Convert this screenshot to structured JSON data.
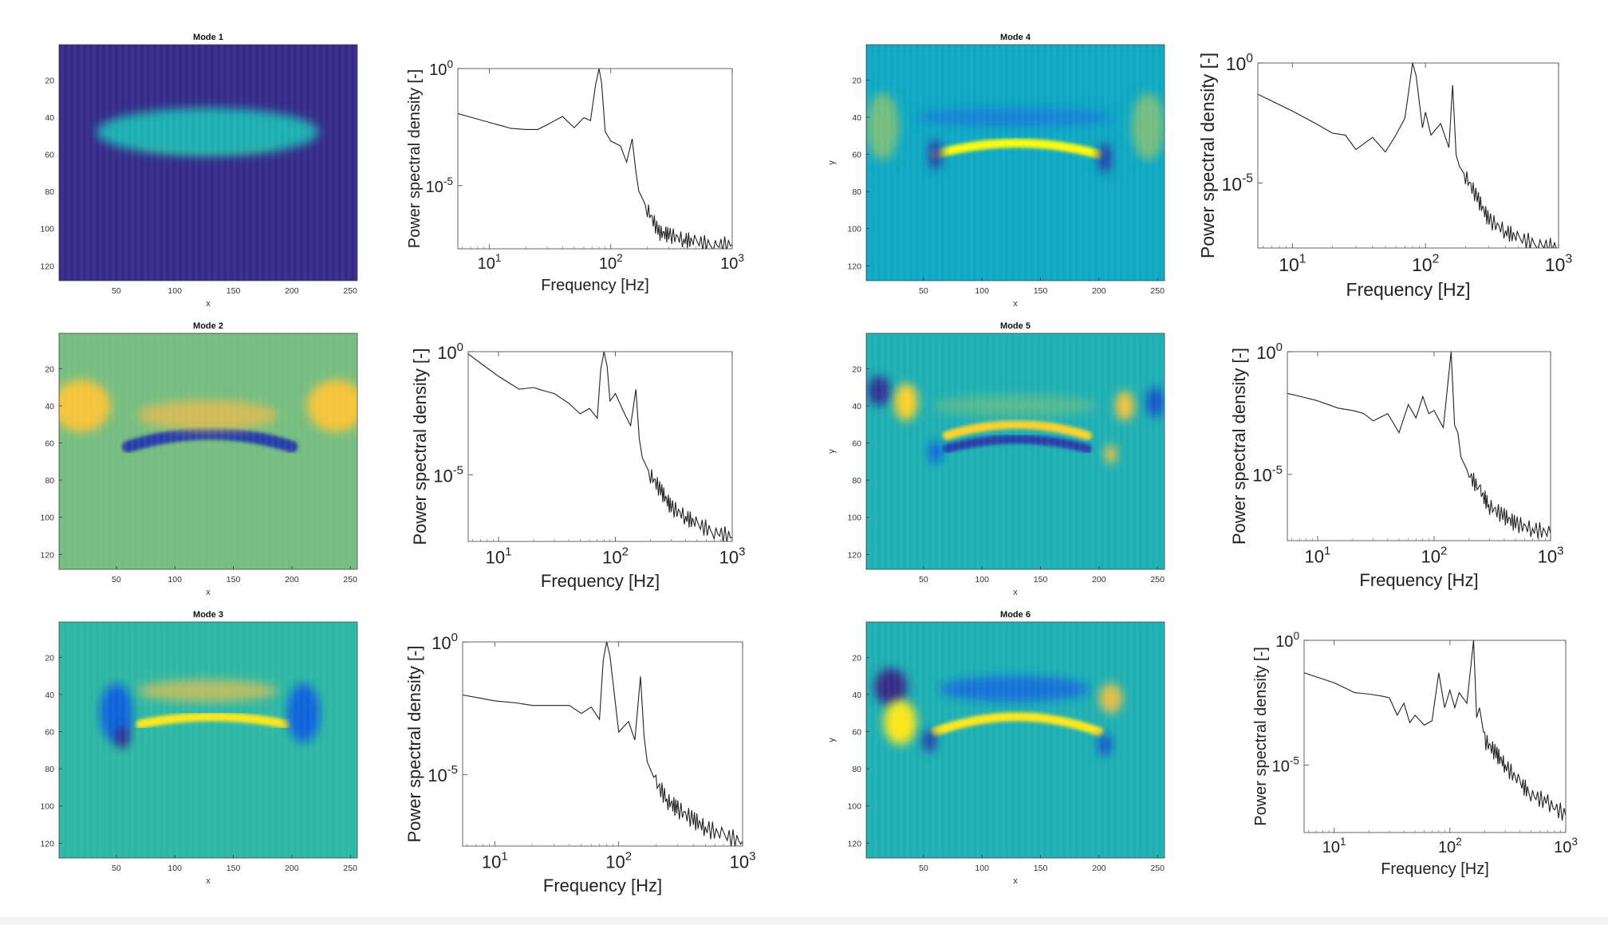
{
  "colors": {
    "psd_line": "#222222",
    "axis": "#333333",
    "background": "#ffffff",
    "parula": [
      "#352a87",
      "#0f5cdd",
      "#1481d6",
      "#06a4ca",
      "#2eb7a4",
      "#87bf77",
      "#d1bb59",
      "#fec832",
      "#f9fb0e"
    ]
  },
  "chart_data": [
    {
      "type": "heatmap",
      "title": "Mode 1",
      "xlabel": "x",
      "ylabel": "",
      "xlim": [
        1,
        256
      ],
      "ylim": [
        1,
        128
      ],
      "xticks": [
        50,
        100,
        150,
        200,
        250
      ],
      "yticks": [
        20,
        40,
        60,
        80,
        100,
        120
      ],
      "colormap": "parula",
      "background_level": 0.0,
      "features": [
        {
          "kind": "blob",
          "x": 128,
          "y": 52,
          "rx": 60,
          "ry": 5,
          "level": 1.0
        },
        {
          "kind": "blob",
          "x": 128,
          "y": 48,
          "rx": 95,
          "ry": 13,
          "level": 0.45
        }
      ]
    },
    {
      "type": "line",
      "title": "",
      "xlabel": "Frequency [Hz]",
      "ylabel": "Power spectral density [-]",
      "xscale": "log",
      "yscale": "log",
      "xlim": [
        5.5,
        1000
      ],
      "ylim": [
        2e-08,
        1
      ],
      "xticks": [
        "10^1",
        "10^2",
        "10^3"
      ],
      "yticks": [
        "10^0",
        "10^-5"
      ],
      "series": [
        {
          "name": "",
          "x": [
            5.5,
            10,
            15,
            20,
            25,
            30,
            40,
            50,
            60,
            68,
            75,
            80,
            84,
            90,
            100,
            120,
            135,
            150,
            160,
            170,
            200,
            250,
            300,
            400,
            500,
            700,
            1000
          ],
          "y": [
            0.012,
            0.005,
            0.0028,
            0.0025,
            0.0025,
            0.004,
            0.009,
            0.003,
            0.008,
            0.006,
            0.2,
            1.0,
            0.25,
            0.002,
            0.0008,
            0.0005,
            0.0001,
            0.001,
            5e-05,
            6e-06,
            1e-06,
            1e-07,
            8e-08,
            5e-08,
            4e-08,
            3e-08,
            3e-08
          ]
        }
      ]
    },
    {
      "type": "heatmap",
      "title": "Mode 4",
      "xlabel": "x",
      "ylabel": "y",
      "xlim": [
        1,
        256
      ],
      "ylim": [
        1,
        128
      ],
      "xticks": [
        50,
        100,
        150,
        200,
        250
      ],
      "yticks": [
        20,
        40,
        60,
        80,
        100,
        120
      ],
      "colormap": "parula",
      "background_level": 0.4,
      "features": [
        {
          "kind": "arc",
          "x0": 60,
          "x1": 200,
          "y_mid": 54,
          "y_end": 60,
          "thickness": 3,
          "level": 1.0
        },
        {
          "kind": "blob",
          "x": 128,
          "y": 40,
          "rx": 85,
          "ry": 5,
          "level": 0.25
        },
        {
          "kind": "blob",
          "x": 15,
          "y": 45,
          "rx": 14,
          "ry": 18,
          "level": 0.6
        },
        {
          "kind": "blob",
          "x": 242,
          "y": 45,
          "rx": 14,
          "ry": 18,
          "level": 0.6
        },
        {
          "kind": "blob",
          "x": 60,
          "y": 60,
          "rx": 6,
          "ry": 8,
          "level": 0.05
        },
        {
          "kind": "blob",
          "x": 205,
          "y": 62,
          "rx": 6,
          "ry": 8,
          "level": 0.05
        }
      ]
    },
    {
      "type": "line",
      "title": "",
      "xlabel": "Frequency [Hz]",
      "ylabel": "Power spectral density [-]",
      "xscale": "log",
      "yscale": "log",
      "xlim": [
        5.5,
        1000
      ],
      "ylim": [
        2e-08,
        1
      ],
      "xticks": [
        "10^1",
        "10^2",
        "10^3"
      ],
      "yticks": [
        "10^0",
        "10^-5"
      ],
      "series": [
        {
          "name": "",
          "x": [
            5.5,
            10,
            15,
            20,
            25,
            30,
            40,
            50,
            60,
            70,
            80,
            85,
            95,
            100,
            110,
            130,
            150,
            160,
            170,
            180,
            200,
            250,
            300,
            400,
            500,
            700,
            1000
          ],
          "y": [
            0.05,
            0.01,
            0.003,
            0.0012,
            0.001,
            0.00025,
            0.0008,
            0.0002,
            0.001,
            0.005,
            1.0,
            0.3,
            0.002,
            0.009,
            0.001,
            0.003,
            0.0003,
            0.12,
            0.00015,
            5e-05,
            2e-05,
            2e-06,
            3e-07,
            1e-07,
            5e-08,
            3e-08,
            2e-08
          ]
        }
      ]
    },
    {
      "type": "heatmap",
      "title": "Mode 2",
      "xlabel": "x",
      "ylabel": "",
      "xlim": [
        1,
        256
      ],
      "ylim": [
        1,
        128
      ],
      "xticks": [
        50,
        100,
        150,
        200,
        250
      ],
      "yticks": [
        20,
        40,
        60,
        80,
        100,
        120
      ],
      "colormap": "parula",
      "background_level": 0.6,
      "features": [
        {
          "kind": "arc",
          "x0": 60,
          "x1": 200,
          "y_mid": 55,
          "y_end": 62,
          "thickness": 4,
          "level": 0.05
        },
        {
          "kind": "blob",
          "x": 20,
          "y": 40,
          "rx": 25,
          "ry": 14,
          "level": 0.85
        },
        {
          "kind": "blob",
          "x": 238,
          "y": 40,
          "rx": 25,
          "ry": 14,
          "level": 0.85
        },
        {
          "kind": "blob",
          "x": 128,
          "y": 45,
          "rx": 60,
          "ry": 8,
          "level": 0.75
        }
      ]
    },
    {
      "type": "line",
      "title": "",
      "xlabel": "Frequency [Hz]",
      "ylabel": "Power spectral density [-]",
      "xscale": "log",
      "yscale": "log",
      "xlim": [
        5.5,
        1000
      ],
      "ylim": [
        2e-08,
        1
      ],
      "xticks": [
        "10^1",
        "10^2",
        "10^3"
      ],
      "yticks": [
        "10^0",
        "10^-5"
      ],
      "series": [
        {
          "name": "",
          "x": [
            5.5,
            10,
            15,
            20,
            25,
            30,
            40,
            50,
            60,
            70,
            75,
            80,
            85,
            90,
            100,
            120,
            135,
            150,
            160,
            170,
            200,
            250,
            300,
            400,
            500,
            700,
            1000
          ],
          "y": [
            0.8,
            0.1,
            0.03,
            0.035,
            0.025,
            0.02,
            0.008,
            0.003,
            0.005,
            0.002,
            0.2,
            1.0,
            0.25,
            0.01,
            0.02,
            0.003,
            0.001,
            0.03,
            0.0003,
            5e-05,
            1e-05,
            2e-06,
            5e-07,
            2e-07,
            1e-07,
            5e-08,
            3e-08
          ]
        }
      ]
    },
    {
      "type": "heatmap",
      "title": "Mode 5",
      "xlabel": "x",
      "ylabel": "y",
      "xlim": [
        1,
        256
      ],
      "ylim": [
        1,
        128
      ],
      "xticks": [
        50,
        100,
        150,
        200,
        250
      ],
      "yticks": [
        20,
        40,
        60,
        80,
        100,
        120
      ],
      "colormap": "parula",
      "background_level": 0.45,
      "features": [
        {
          "kind": "arc",
          "x0": 70,
          "x1": 190,
          "y_mid": 50,
          "y_end": 56,
          "thickness": 3,
          "level": 0.9
        },
        {
          "kind": "arc",
          "x0": 70,
          "x1": 190,
          "y_mid": 58,
          "y_end": 63,
          "thickness": 3,
          "level": 0.05
        },
        {
          "kind": "blob",
          "x": 12,
          "y": 32,
          "rx": 10,
          "ry": 8,
          "level": 0.02
        },
        {
          "kind": "blob",
          "x": 248,
          "y": 38,
          "rx": 8,
          "ry": 8,
          "level": 0.1
        },
        {
          "kind": "blob",
          "x": 35,
          "y": 38,
          "rx": 10,
          "ry": 10,
          "level": 0.9
        },
        {
          "kind": "blob",
          "x": 222,
          "y": 40,
          "rx": 8,
          "ry": 8,
          "level": 0.85
        },
        {
          "kind": "blob",
          "x": 210,
          "y": 66,
          "rx": 5,
          "ry": 5,
          "level": 0.85
        },
        {
          "kind": "blob",
          "x": 60,
          "y": 65,
          "rx": 6,
          "ry": 6,
          "level": 0.15
        },
        {
          "kind": "blob",
          "x": 128,
          "y": 40,
          "rx": 70,
          "ry": 6,
          "level": 0.55
        }
      ]
    },
    {
      "type": "line",
      "title": "",
      "xlabel": "Frequency [Hz]",
      "ylabel": "Power spectral density [-]",
      "xscale": "log",
      "yscale": "log",
      "xlim": [
        5.5,
        1000
      ],
      "ylim": [
        2e-08,
        1
      ],
      "xticks": [
        "10^1",
        "10^2",
        "10^3"
      ],
      "yticks": [
        "10^0",
        "10^-5"
      ],
      "series": [
        {
          "name": "",
          "x": [
            5.5,
            10,
            15,
            20,
            25,
            30,
            40,
            50,
            60,
            70,
            80,
            90,
            100,
            120,
            140,
            150,
            160,
            170,
            200,
            250,
            300,
            400,
            500,
            700,
            1000
          ],
          "y": [
            0.02,
            0.01,
            0.005,
            0.004,
            0.003,
            0.0015,
            0.003,
            0.0005,
            0.007,
            0.002,
            0.015,
            0.003,
            0.004,
            0.0008,
            1.0,
            0.001,
            0.0005,
            5e-05,
            1e-05,
            2e-06,
            5e-07,
            2e-07,
            1e-07,
            6e-08,
            4e-08
          ]
        }
      ]
    },
    {
      "type": "heatmap",
      "title": "Mode 3",
      "xlabel": "x",
      "ylabel": "",
      "xlim": [
        1,
        256
      ],
      "ylim": [
        1,
        128
      ],
      "xticks": [
        50,
        100,
        150,
        200,
        250
      ],
      "yticks": [
        20,
        40,
        60,
        80,
        100,
        120
      ],
      "colormap": "parula",
      "background_level": 0.5,
      "features": [
        {
          "kind": "arc",
          "x0": 70,
          "x1": 195,
          "y_mid": 52,
          "y_end": 56,
          "thickness": 3,
          "level": 0.95
        },
        {
          "kind": "blob",
          "x": 128,
          "y": 38,
          "rx": 60,
          "ry": 6,
          "level": 0.7
        },
        {
          "kind": "blob",
          "x": 50,
          "y": 50,
          "rx": 14,
          "ry": 16,
          "level": 0.15
        },
        {
          "kind": "blob",
          "x": 210,
          "y": 50,
          "rx": 14,
          "ry": 16,
          "level": 0.15
        },
        {
          "kind": "blob",
          "x": 55,
          "y": 63,
          "rx": 6,
          "ry": 6,
          "level": 0.0
        }
      ]
    },
    {
      "type": "line",
      "title": "",
      "xlabel": "Frequency [Hz]",
      "ylabel": "Power spectral density [-]",
      "xscale": "log",
      "yscale": "log",
      "xlim": [
        5.5,
        1000
      ],
      "ylim": [
        2e-08,
        1
      ],
      "xticks": [
        "10^1",
        "10^2",
        "10^3"
      ],
      "yticks": [
        "10^0",
        "10^-5"
      ],
      "series": [
        {
          "name": "",
          "x": [
            5.5,
            10,
            15,
            20,
            25,
            30,
            40,
            50,
            60,
            70,
            75,
            80,
            85,
            100,
            120,
            135,
            150,
            160,
            170,
            200,
            250,
            300,
            400,
            500,
            700,
            1000
          ],
          "y": [
            0.01,
            0.006,
            0.005,
            0.004,
            0.004,
            0.004,
            0.004,
            0.002,
            0.0035,
            0.0012,
            0.2,
            1.0,
            0.3,
            0.0004,
            0.001,
            0.0002,
            0.05,
            0.0003,
            3e-05,
            5e-06,
            1e-06,
            5e-07,
            2e-07,
            1e-07,
            5e-08,
            3e-08
          ]
        }
      ]
    },
    {
      "type": "heatmap",
      "title": "Mode 6",
      "xlabel": "x",
      "ylabel": "y",
      "xlim": [
        1,
        256
      ],
      "ylim": [
        1,
        128
      ],
      "xticks": [
        50,
        100,
        150,
        200,
        250
      ],
      "yticks": [
        20,
        40,
        60,
        80,
        100,
        120
      ],
      "colormap": "parula",
      "background_level": 0.45,
      "features": [
        {
          "kind": "arc",
          "x0": 60,
          "x1": 200,
          "y_mid": 52,
          "y_end": 60,
          "thickness": 3,
          "level": 0.95
        },
        {
          "kind": "blob",
          "x": 128,
          "y": 37,
          "rx": 65,
          "ry": 7,
          "level": 0.2
        },
        {
          "kind": "blob",
          "x": 22,
          "y": 36,
          "rx": 14,
          "ry": 10,
          "level": 0.0
        },
        {
          "kind": "blob",
          "x": 30,
          "y": 55,
          "rx": 14,
          "ry": 12,
          "level": 0.95
        },
        {
          "kind": "blob",
          "x": 210,
          "y": 42,
          "rx": 10,
          "ry": 8,
          "level": 0.8
        },
        {
          "kind": "blob",
          "x": 55,
          "y": 65,
          "rx": 6,
          "ry": 6,
          "level": 0.05
        },
        {
          "kind": "blob",
          "x": 205,
          "y": 67,
          "rx": 6,
          "ry": 6,
          "level": 0.1
        }
      ]
    },
    {
      "type": "line",
      "title": "",
      "xlabel": "Frequency [Hz]",
      "ylabel": "Power spectral density [-]",
      "xscale": "log",
      "yscale": "log",
      "xlim": [
        5.5,
        1000
      ],
      "ylim": [
        2e-08,
        1
      ],
      "xticks": [
        "10^1",
        "10^2",
        "10^3"
      ],
      "yticks": [
        "10^0",
        "10^-5"
      ],
      "series": [
        {
          "name": "",
          "x": [
            5.5,
            10,
            15,
            20,
            25,
            30,
            35,
            40,
            45,
            50,
            60,
            70,
            80,
            90,
            100,
            110,
            120,
            140,
            160,
            170,
            180,
            200,
            250,
            300,
            400,
            500,
            700,
            1000
          ],
          "y": [
            0.05,
            0.02,
            0.008,
            0.007,
            0.006,
            0.005,
            0.001,
            0.003,
            0.0005,
            0.001,
            0.0004,
            0.0006,
            0.05,
            0.002,
            0.01,
            0.002,
            0.008,
            0.003,
            1.0,
            0.0008,
            0.002,
            0.0001,
            3e-05,
            1e-05,
            2e-06,
            7e-07,
            3e-07,
            1e-07
          ]
        }
      ]
    }
  ]
}
